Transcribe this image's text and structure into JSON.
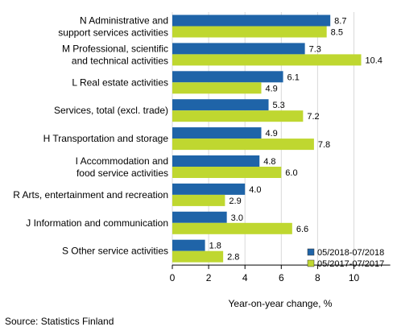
{
  "chart_data": {
    "type": "bar",
    "orientation": "horizontal",
    "categories": [
      [
        "N Administrative and",
        "support services activities"
      ],
      [
        "M Professional, scientific",
        "and technical activities"
      ],
      [
        "L Real estate activities"
      ],
      [
        "Services, total (excl. trade)"
      ],
      [
        "H Transportation and storage"
      ],
      [
        "I Accommodation and",
        "food service activities"
      ],
      [
        "R Arts, entertainment and recreation"
      ],
      [
        "J Information and communication"
      ],
      [
        "S Other service activities"
      ]
    ],
    "series": [
      {
        "name": "05/2018-07/2018",
        "color": "#1f64a8",
        "values": [
          8.7,
          7.3,
          6.1,
          5.3,
          4.9,
          4.8,
          4.0,
          3.0,
          1.8
        ],
        "labels": [
          "8.7",
          "7.3",
          "6.1",
          "5.3",
          "4.9",
          "4.8",
          "4.0",
          "3.0",
          "1.8"
        ]
      },
      {
        "name": "05/2017-07/2017",
        "color": "#bfd730",
        "values": [
          8.5,
          10.4,
          4.9,
          7.2,
          7.8,
          6.0,
          2.9,
          6.6,
          2.8
        ],
        "labels": [
          "8.5",
          "10.4",
          "4.9",
          "7.2",
          "7.8",
          "6.0",
          "2.9",
          "6.6",
          "2.8"
        ]
      }
    ],
    "xlim": [
      0,
      12
    ],
    "xticks": [
      "0",
      "2",
      "4",
      "6",
      "8",
      "10"
    ],
    "xtick_values": [
      0,
      2,
      4,
      6,
      8,
      10
    ],
    "xlabel": "Year-on-year change, %",
    "legend_position": "bottom-right",
    "grid": true
  },
  "source": "Source: Statistics Finland"
}
